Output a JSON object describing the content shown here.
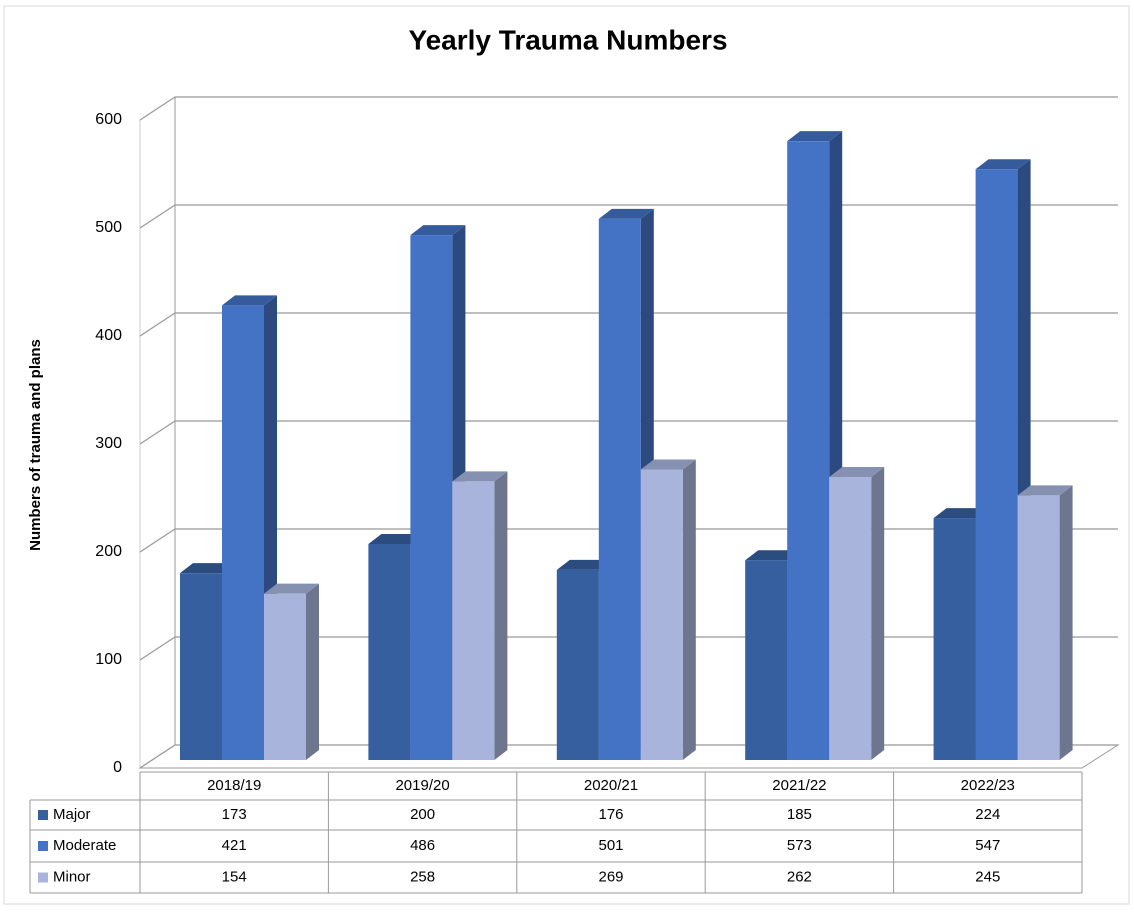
{
  "chart_data": {
    "type": "bar",
    "title": "Yearly Trauma Numbers",
    "y_label": "Numbers of trauma and plans",
    "categories": [
      "2018/19",
      "2019/20",
      "2020/21",
      "2021/22",
      "2022/23"
    ],
    "series": [
      {
        "name": "Major",
        "color": "#365f9f",
        "values": [
          173,
          200,
          176,
          185,
          224
        ]
      },
      {
        "name": "Moderate",
        "color": "#4472c4",
        "values": [
          421,
          486,
          501,
          573,
          547
        ]
      },
      {
        "name": "Minor",
        "color": "#a8b4dc",
        "values": [
          154,
          258,
          269,
          262,
          245
        ]
      }
    ],
    "ylim": [
      0,
      600
    ],
    "yticks": [
      0,
      100,
      200,
      300,
      400,
      500,
      600
    ],
    "grid": true
  }
}
